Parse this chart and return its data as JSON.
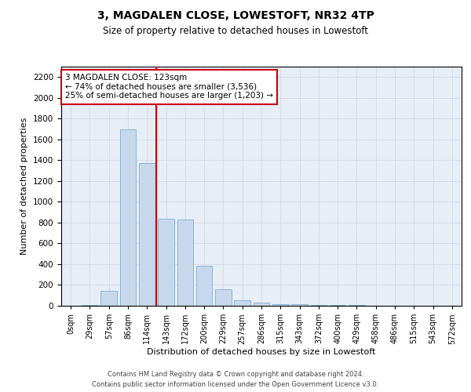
{
  "title": "3, MAGDALEN CLOSE, LOWESTOFT, NR32 4TP",
  "subtitle": "Size of property relative to detached houses in Lowestoft",
  "xlabel": "Distribution of detached houses by size in Lowestoft",
  "ylabel": "Number of detached properties",
  "bar_color": "#c8d8ec",
  "bar_edge_color": "#7aadd4",
  "categories": [
    "0sqm",
    "29sqm",
    "57sqm",
    "86sqm",
    "114sqm",
    "143sqm",
    "172sqm",
    "200sqm",
    "229sqm",
    "257sqm",
    "286sqm",
    "315sqm",
    "343sqm",
    "372sqm",
    "400sqm",
    "429sqm",
    "458sqm",
    "486sqm",
    "515sqm",
    "543sqm",
    "572sqm"
  ],
  "values": [
    3,
    5,
    145,
    1700,
    1370,
    840,
    830,
    385,
    160,
    55,
    28,
    18,
    12,
    8,
    4,
    4,
    3,
    2,
    2,
    1,
    1
  ],
  "ylim": [
    0,
    2300
  ],
  "yticks": [
    0,
    200,
    400,
    600,
    800,
    1000,
    1200,
    1400,
    1600,
    1800,
    2000,
    2200
  ],
  "property_line_x": 4.5,
  "property_line_color": "#cc0000",
  "annotation_text": "3 MAGDALEN CLOSE: 123sqm\n← 74% of detached houses are smaller (3,536)\n25% of semi-detached houses are larger (1,203) →",
  "annotation_box_color": "#ffffff",
  "annotation_box_edge": "#cc0000",
  "footer_line1": "Contains HM Land Registry data © Crown copyright and database right 2024.",
  "footer_line2": "Contains public sector information licensed under the Open Government Licence v3.0.",
  "grid_color": "#d0d8e8",
  "background_color": "#e8eef6"
}
